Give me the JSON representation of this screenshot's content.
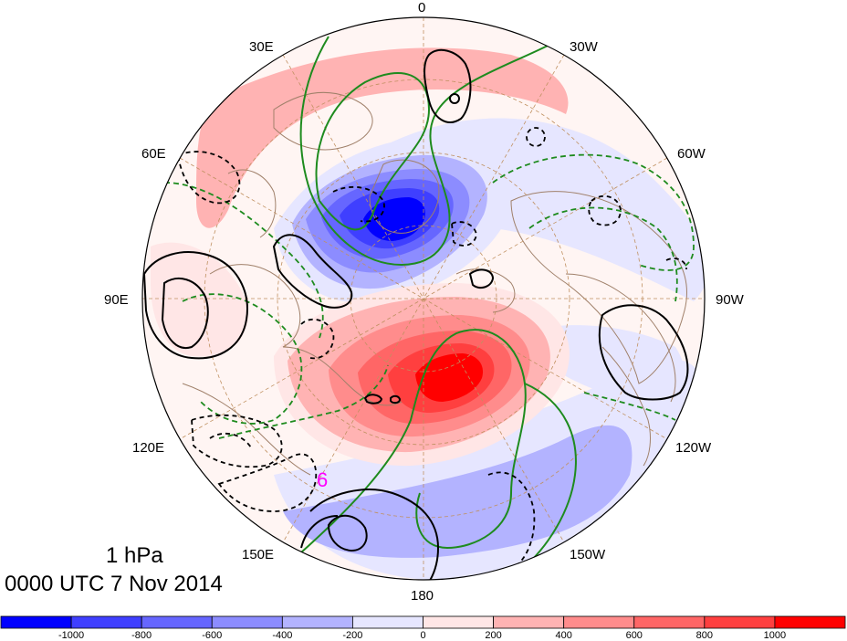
{
  "map": {
    "projection": "north polar stereographic",
    "level": "1 hPa",
    "valid_time": "0000 UTC 7 Nov 2014",
    "longitude_labels": {
      "lon_0": "0",
      "lon_30e": "30E",
      "lon_30w": "30W",
      "lon_60e": "60E",
      "lon_60w": "60W",
      "lon_90e": "90E",
      "lon_90w": "90W",
      "lon_120e": "120E",
      "lon_120w": "120W",
      "lon_150e": "150E",
      "lon_150w": "150W",
      "lon_180": "180"
    },
    "hurricane_symbol": "6"
  },
  "colorbar": {
    "ticks": [
      "-1000",
      "-800",
      "-600",
      "-400",
      "-200",
      "0",
      "200",
      "400",
      "600",
      "800",
      "1000"
    ],
    "colors": [
      "#0000ff",
      "#3f3fff",
      "#6666ff",
      "#8c8cff",
      "#b3b3ff",
      "#e6e6ff",
      "#ffe6e6",
      "#ffb3b3",
      "#ff8c8c",
      "#ff6666",
      "#ff3f3f",
      "#ff0000"
    ]
  },
  "colors": {
    "coastline": "#a0806a",
    "grid": "#c09060",
    "contour_black": "#000000",
    "contour_green": "#1e8b1e",
    "hurricane": "#ff00ff"
  }
}
